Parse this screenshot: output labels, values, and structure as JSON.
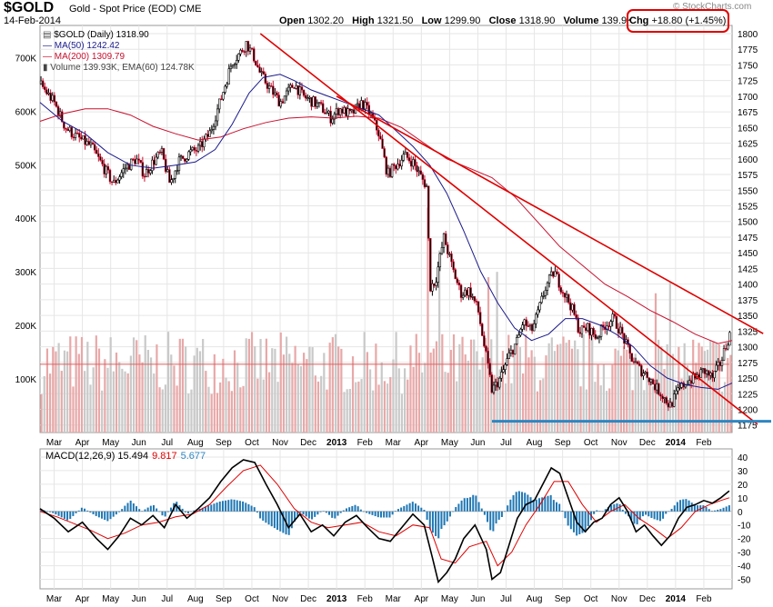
{
  "header": {
    "symbol": "$GOLD",
    "description": "Gold - Spot Price (EOD)",
    "exchange": "CME",
    "date": "14-Feb-2014",
    "open_label": "Open",
    "open": "1302.20",
    "high_label": "High",
    "high": "1321.50",
    "low_label": "Low",
    "low": "1299.90",
    "close_label": "Close",
    "close": "1318.90",
    "volume_label": "Volume",
    "volume": "139.9K",
    "chg_label": "Chg",
    "chg": "+18.80 (+1.45%)",
    "credit": "© StockCharts.com"
  },
  "legend": {
    "price": "$GOLD (Daily) 1318.90",
    "ma50": "MA(50) 1242.42",
    "ma200": "MA(200) 1309.79",
    "volume": "Volume 139.93K, EMA(60) 124.78K"
  },
  "colors": {
    "candle": "#000000",
    "ma50": "#1a1a8c",
    "ma200": "#c8102e",
    "trend": "#e00000",
    "support": "#2e86c1",
    "volume": "#c9c9c9",
    "volume_ema": "#e06060",
    "macd_line": "#000000",
    "signal_line": "#e00000",
    "histogram": "#1f77b4",
    "grid": "#e6e6e6"
  },
  "chart_data": [
    {
      "type": "candlestick",
      "title": "$GOLD (Daily) 1318.90",
      "x_tick_labels": [
        "Mar",
        "Apr",
        "May",
        "Jun",
        "Jul",
        "Aug",
        "Sep",
        "Oct",
        "Nov",
        "Dec",
        "2013",
        "Feb",
        "Mar",
        "Apr",
        "May",
        "Jun",
        "Jul",
        "Aug",
        "Sep",
        "Oct",
        "Nov",
        "Dec",
        "2014",
        "Feb"
      ],
      "y_ticks": [
        1175,
        1200,
        1225,
        1250,
        1275,
        1300,
        1325,
        1350,
        1375,
        1400,
        1425,
        1450,
        1475,
        1500,
        1525,
        1550,
        1575,
        1600,
        1625,
        1650,
        1675,
        1700,
        1725,
        1750,
        1775,
        1800
      ],
      "ylim": [
        1163,
        1813
      ],
      "x_range_months": [
        0,
        24.5
      ],
      "close_path": [
        [
          0,
          1720
        ],
        [
          0.5,
          1690
        ],
        [
          0.9,
          1650
        ],
        [
          1.3,
          1635
        ],
        [
          1.8,
          1620
        ],
        [
          2.2,
          1590
        ],
        [
          2.6,
          1560
        ],
        [
          3.0,
          1585
        ],
        [
          3.4,
          1600
        ],
        [
          3.7,
          1575
        ],
        [
          4.0,
          1595
        ],
        [
          4.3,
          1610
        ],
        [
          4.6,
          1560
        ],
        [
          4.9,
          1595
        ],
        [
          5.3,
          1610
        ],
        [
          5.6,
          1615
        ],
        [
          6.0,
          1640
        ],
        [
          6.4,
          1695
        ],
        [
          6.8,
          1755
        ],
        [
          7.1,
          1770
        ],
        [
          7.3,
          1785
        ],
        [
          7.6,
          1760
        ],
        [
          7.8,
          1735
        ],
        [
          8.1,
          1715
        ],
        [
          8.5,
          1690
        ],
        [
          9.0,
          1720
        ],
        [
          9.3,
          1700
        ],
        [
          9.7,
          1690
        ],
        [
          10.0,
          1680
        ],
        [
          10.3,
          1665
        ],
        [
          10.6,
          1680
        ],
        [
          11.0,
          1670
        ],
        [
          11.4,
          1690
        ],
        [
          11.7,
          1670
        ],
        [
          12.0,
          1640
        ],
        [
          12.3,
          1575
        ],
        [
          12.6,
          1590
        ],
        [
          12.9,
          1605
        ],
        [
          13.2,
          1595
        ],
        [
          13.5,
          1570
        ],
        [
          13.7,
          1555
        ],
        [
          13.8,
          1395
        ],
        [
          14.0,
          1405
        ],
        [
          14.3,
          1475
        ],
        [
          14.6,
          1425
        ],
        [
          14.9,
          1385
        ],
        [
          15.2,
          1390
        ],
        [
          15.5,
          1360
        ],
        [
          15.75,
          1295
        ],
        [
          16.0,
          1230
        ],
        [
          16.3,
          1250
        ],
        [
          16.6,
          1285
        ],
        [
          16.9,
          1310
        ],
        [
          17.1,
          1340
        ],
        [
          17.4,
          1325
        ],
        [
          17.6,
          1350
        ],
        [
          17.9,
          1395
        ],
        [
          18.2,
          1420
        ],
        [
          18.5,
          1390
        ],
        [
          18.8,
          1365
        ],
        [
          19.1,
          1325
        ],
        [
          19.4,
          1330
        ],
        [
          19.7,
          1315
        ],
        [
          20.0,
          1335
        ],
        [
          20.3,
          1345
        ],
        [
          20.6,
          1320
        ],
        [
          20.9,
          1285
        ],
        [
          21.2,
          1265
        ],
        [
          21.5,
          1255
        ],
        [
          21.8,
          1235
        ],
        [
          22.0,
          1225
        ],
        [
          22.3,
          1205
        ],
        [
          22.6,
          1230
        ],
        [
          22.9,
          1245
        ],
        [
          23.2,
          1250
        ],
        [
          23.5,
          1262
        ],
        [
          23.8,
          1250
        ],
        [
          24.1,
          1275
        ],
        [
          24.4,
          1319
        ]
      ],
      "ma50_path": [
        [
          0,
          1690
        ],
        [
          0.8,
          1660
        ],
        [
          1.6,
          1640
        ],
        [
          2.4,
          1610
        ],
        [
          3.2,
          1590
        ],
        [
          4.0,
          1585
        ],
        [
          4.8,
          1590
        ],
        [
          5.5,
          1595
        ],
        [
          6.2,
          1615
        ],
        [
          6.8,
          1655
        ],
        [
          7.4,
          1705
        ],
        [
          7.9,
          1730
        ],
        [
          8.5,
          1735
        ],
        [
          9.0,
          1725
        ],
        [
          9.6,
          1710
        ],
        [
          10.2,
          1700
        ],
        [
          10.8,
          1690
        ],
        [
          11.4,
          1680
        ],
        [
          12.0,
          1670
        ],
        [
          12.6,
          1645
        ],
        [
          13.2,
          1620
        ],
        [
          13.8,
          1590
        ],
        [
          14.4,
          1545
        ],
        [
          15.0,
          1485
        ],
        [
          15.6,
          1420
        ],
        [
          16.2,
          1370
        ],
        [
          16.8,
          1330
        ],
        [
          17.4,
          1310
        ],
        [
          18.0,
          1320
        ],
        [
          18.6,
          1345
        ],
        [
          19.2,
          1345
        ],
        [
          19.8,
          1335
        ],
        [
          20.4,
          1320
        ],
        [
          21.0,
          1300
        ],
        [
          21.6,
          1270
        ],
        [
          22.2,
          1250
        ],
        [
          22.8,
          1240
        ],
        [
          23.4,
          1235
        ],
        [
          24.0,
          1232
        ],
        [
          24.5,
          1242
        ]
      ],
      "ma200_path": [
        [
          0,
          1660
        ],
        [
          0.8,
          1672
        ],
        [
          1.6,
          1680
        ],
        [
          2.4,
          1680
        ],
        [
          3.2,
          1670
        ],
        [
          4.0,
          1652
        ],
        [
          4.8,
          1640
        ],
        [
          5.6,
          1630
        ],
        [
          6.4,
          1635
        ],
        [
          7.2,
          1648
        ],
        [
          8.0,
          1658
        ],
        [
          8.8,
          1665
        ],
        [
          9.6,
          1667
        ],
        [
          10.4,
          1665
        ],
        [
          11.2,
          1668
        ],
        [
          12.0,
          1665
        ],
        [
          12.8,
          1650
        ],
        [
          13.6,
          1625
        ],
        [
          14.4,
          1600
        ],
        [
          15.2,
          1585
        ],
        [
          16.0,
          1570
        ],
        [
          16.8,
          1540
        ],
        [
          17.6,
          1500
        ],
        [
          18.4,
          1460
        ],
        [
          19.2,
          1430
        ],
        [
          20.0,
          1400
        ],
        [
          20.8,
          1380
        ],
        [
          21.6,
          1358
        ],
        [
          22.4,
          1340
        ],
        [
          23.2,
          1320
        ],
        [
          24.0,
          1305
        ],
        [
          24.5,
          1310
        ]
      ],
      "trendlines": [
        {
          "from": [
            7.8,
            1800
          ],
          "to": [
            24.5,
            1205
          ]
        },
        {
          "from": [
            10.5,
            1700
          ],
          "to": [
            24.7,
            1350
          ]
        }
      ],
      "support_level": 1181,
      "volume_axis_labels": [
        "100K",
        "200K",
        "300K",
        "400K",
        "500K",
        "600K",
        "700K"
      ],
      "volume_ylim": [
        0,
        760000
      ],
      "volume_baseline_k": 130,
      "volume_spikes": [
        [
          13.75,
          420
        ],
        [
          14.1,
          340
        ],
        [
          15.9,
          290
        ],
        [
          16.2,
          300
        ],
        [
          21.8,
          260
        ],
        [
          22.3,
          280
        ]
      ]
    },
    {
      "type": "line",
      "title": "MACD(12,26,9)",
      "macd_value": "15.494",
      "signal_value": "9.817",
      "histogram_value": "5.677",
      "y_ticks": [
        -50,
        -40,
        -30,
        -20,
        -10,
        0,
        10,
        20,
        30,
        40
      ],
      "ylim": [
        -57,
        46
      ],
      "x_tick_labels": [
        "Mar",
        "Apr",
        "May",
        "Jun",
        "Jul",
        "Aug",
        "Sep",
        "Oct",
        "Nov",
        "Dec",
        "2013",
        "Feb",
        "Mar",
        "Apr",
        "May",
        "Jun",
        "Jul",
        "Aug",
        "Sep",
        "Oct",
        "Nov",
        "Dec",
        "2014",
        "Feb"
      ],
      "macd_path": [
        [
          0,
          2
        ],
        [
          0.5,
          -5
        ],
        [
          1.0,
          -15
        ],
        [
          1.5,
          -8
        ],
        [
          2.0,
          -20
        ],
        [
          2.4,
          -28
        ],
        [
          2.8,
          -18
        ],
        [
          3.2,
          -5
        ],
        [
          3.6,
          -10
        ],
        [
          4.0,
          -3
        ],
        [
          4.4,
          -12
        ],
        [
          4.8,
          5
        ],
        [
          5.2,
          -5
        ],
        [
          5.6,
          2
        ],
        [
          6.0,
          10
        ],
        [
          6.4,
          22
        ],
        [
          6.8,
          32
        ],
        [
          7.2,
          38
        ],
        [
          7.6,
          36
        ],
        [
          8.0,
          20
        ],
        [
          8.4,
          5
        ],
        [
          8.8,
          -12
        ],
        [
          9.2,
          -2
        ],
        [
          9.6,
          -15
        ],
        [
          10.0,
          -10
        ],
        [
          10.4,
          -18
        ],
        [
          10.8,
          -8
        ],
        [
          11.2,
          -3
        ],
        [
          11.6,
          -12
        ],
        [
          12.0,
          -20
        ],
        [
          12.4,
          -22
        ],
        [
          12.8,
          -12
        ],
        [
          13.2,
          -2
        ],
        [
          13.6,
          -10
        ],
        [
          13.9,
          -35
        ],
        [
          14.1,
          -52
        ],
        [
          14.4,
          -45
        ],
        [
          14.7,
          -35
        ],
        [
          15.0,
          -20
        ],
        [
          15.4,
          -10
        ],
        [
          15.8,
          -28
        ],
        [
          16.0,
          -50
        ],
        [
          16.3,
          -45
        ],
        [
          16.6,
          -25
        ],
        [
          16.9,
          -5
        ],
        [
          17.2,
          5
        ],
        [
          17.5,
          8
        ],
        [
          17.8,
          20
        ],
        [
          18.1,
          32
        ],
        [
          18.4,
          28
        ],
        [
          18.7,
          10
        ],
        [
          19.0,
          -8
        ],
        [
          19.3,
          -15
        ],
        [
          19.6,
          -8
        ],
        [
          19.9,
          -5
        ],
        [
          20.2,
          5
        ],
        [
          20.5,
          10
        ],
        [
          20.8,
          0
        ],
        [
          21.1,
          -15
        ],
        [
          21.4,
          -10
        ],
        [
          21.7,
          -18
        ],
        [
          22.0,
          -25
        ],
        [
          22.3,
          -18
        ],
        [
          22.6,
          -5
        ],
        [
          22.9,
          3
        ],
        [
          23.2,
          5
        ],
        [
          23.5,
          8
        ],
        [
          23.8,
          6
        ],
        [
          24.1,
          10
        ],
        [
          24.4,
          15
        ]
      ],
      "signal_path": [
        [
          0,
          0
        ],
        [
          0.6,
          -4
        ],
        [
          1.2,
          -9
        ],
        [
          1.8,
          -14
        ],
        [
          2.4,
          -20
        ],
        [
          3.0,
          -16
        ],
        [
          3.6,
          -10
        ],
        [
          4.2,
          -8
        ],
        [
          4.8,
          -4
        ],
        [
          5.4,
          -2
        ],
        [
          6.0,
          5
        ],
        [
          6.6,
          18
        ],
        [
          7.2,
          30
        ],
        [
          7.8,
          34
        ],
        [
          8.4,
          20
        ],
        [
          9.0,
          2
        ],
        [
          9.6,
          -8
        ],
        [
          10.2,
          -12
        ],
        [
          10.8,
          -10
        ],
        [
          11.4,
          -8
        ],
        [
          12.0,
          -15
        ],
        [
          12.6,
          -18
        ],
        [
          13.2,
          -10
        ],
        [
          13.8,
          -12
        ],
        [
          14.2,
          -35
        ],
        [
          14.7,
          -38
        ],
        [
          15.2,
          -26
        ],
        [
          15.8,
          -22
        ],
        [
          16.2,
          -40
        ],
        [
          16.7,
          -30
        ],
        [
          17.2,
          -10
        ],
        [
          17.7,
          5
        ],
        [
          18.2,
          22
        ],
        [
          18.7,
          22
        ],
        [
          19.2,
          5
        ],
        [
          19.7,
          -8
        ],
        [
          20.2,
          0
        ],
        [
          20.7,
          5
        ],
        [
          21.2,
          -5
        ],
        [
          21.7,
          -12
        ],
        [
          22.2,
          -20
        ],
        [
          22.7,
          -12
        ],
        [
          23.2,
          0
        ],
        [
          23.7,
          5
        ],
        [
          24.1,
          8
        ],
        [
          24.4,
          10
        ]
      ]
    }
  ]
}
